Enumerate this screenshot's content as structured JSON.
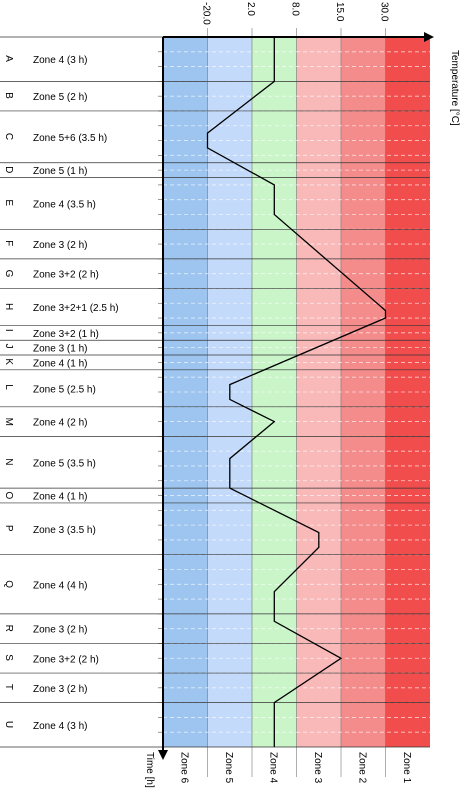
{
  "chart_data": {
    "type": "line",
    "x_axis_label": "Temperature [°C]",
    "y_axis_label": "Time [h]",
    "x_ticks": [
      "-20.0",
      "2.0",
      "8.0",
      "15.0",
      "30.0"
    ],
    "zones": [
      {
        "name": "Zone 6",
        "color": "#9dc5f0"
      },
      {
        "name": "Zone 5",
        "color": "#c3dafa"
      },
      {
        "name": "Zone 4",
        "color": "#c9f5c9"
      },
      {
        "name": "Zone 3",
        "color": "#f9b9b9"
      },
      {
        "name": "Zone 2",
        "color": "#f58c8c"
      },
      {
        "name": "Zone 1",
        "color": "#f24d4d"
      }
    ],
    "segments": [
      {
        "letter": "A",
        "label": "Zone 4 (3 h)",
        "hours": 3,
        "zone": 4
      },
      {
        "letter": "B",
        "label": "Zone 5 (2 h)",
        "hours": 2,
        "zone": 5
      },
      {
        "letter": "C",
        "label": "Zone 5+6 (3.5 h)",
        "hours": 3.5,
        "zone": 5.5
      },
      {
        "letter": "D",
        "label": "Zone 5 (1 h)",
        "hours": 1,
        "zone": 5
      },
      {
        "letter": "E",
        "label": "Zone 4 (3.5 h)",
        "hours": 3.5,
        "zone": 4
      },
      {
        "letter": "F",
        "label": "Zone 3 (2 h)",
        "hours": 2,
        "zone": 3
      },
      {
        "letter": "G",
        "label": "Zone 3+2 (2 h)",
        "hours": 2,
        "zone": 2.5
      },
      {
        "letter": "H",
        "label": "Zone 3+2+1 (2.5 h)",
        "hours": 2.5,
        "zone": 2
      },
      {
        "letter": "I",
        "label": "Zone 3+2 (1 h)",
        "hours": 1,
        "zone": 2.5
      },
      {
        "letter": "J",
        "label": "Zone 3 (1 h)",
        "hours": 1,
        "zone": 3
      },
      {
        "letter": "K",
        "label": "Zone 4 (1 h)",
        "hours": 1,
        "zone": 4
      },
      {
        "letter": "L",
        "label": "Zone 5 (2.5 h)",
        "hours": 2.5,
        "zone": 5
      },
      {
        "letter": "M",
        "label": "Zone 4 (2 h)",
        "hours": 2,
        "zone": 4
      },
      {
        "letter": "N",
        "label": "Zone 5 (3.5 h)",
        "hours": 3.5,
        "zone": 5
      },
      {
        "letter": "O",
        "label": "Zone 4 (1 h)",
        "hours": 1,
        "zone": 4
      },
      {
        "letter": "P",
        "label": "Zone 3 (3.5 h)",
        "hours": 3.5,
        "zone": 3
      },
      {
        "letter": "Q",
        "label": "Zone 4 (4 h)",
        "hours": 4,
        "zone": 4
      },
      {
        "letter": "R",
        "label": "Zone 3 (2 h)",
        "hours": 2,
        "zone": 3
      },
      {
        "letter": "S",
        "label": "Zone 3+2 (2 h)",
        "hours": 2,
        "zone": 2.5
      },
      {
        "letter": "T",
        "label": "Zone 3 (2 h)",
        "hours": 2,
        "zone": 3
      },
      {
        "letter": "U",
        "label": "Zone 4 (3 h)",
        "hours": 3,
        "zone": 4
      }
    ],
    "line_points": [
      {
        "t": 0,
        "zone": 4
      },
      {
        "t": 3,
        "zone": 4
      },
      {
        "t": 6.5,
        "zone": 5.5
      },
      {
        "t": 7.5,
        "zone": 5.5
      },
      {
        "t": 10,
        "zone": 4
      },
      {
        "t": 12,
        "zone": 4
      },
      {
        "t": 18.5,
        "zone": 1.5
      },
      {
        "t": 19,
        "zone": 1.5
      },
      {
        "t": 23.5,
        "zone": 5
      },
      {
        "t": 24.5,
        "zone": 5
      },
      {
        "t": 26,
        "zone": 4
      },
      {
        "t": 28.5,
        "zone": 5
      },
      {
        "t": 30.5,
        "zone": 5
      },
      {
        "t": 33.5,
        "zone": 3
      },
      {
        "t": 34.5,
        "zone": 3
      },
      {
        "t": 37.5,
        "zone": 4
      },
      {
        "t": 39.5,
        "zone": 4
      },
      {
        "t": 42,
        "zone": 2.5
      },
      {
        "t": 45,
        "zone": 4
      },
      {
        "t": 46.5,
        "zone": 4
      },
      {
        "t": 48,
        "zone": 4
      }
    ],
    "total_hours": 48
  }
}
